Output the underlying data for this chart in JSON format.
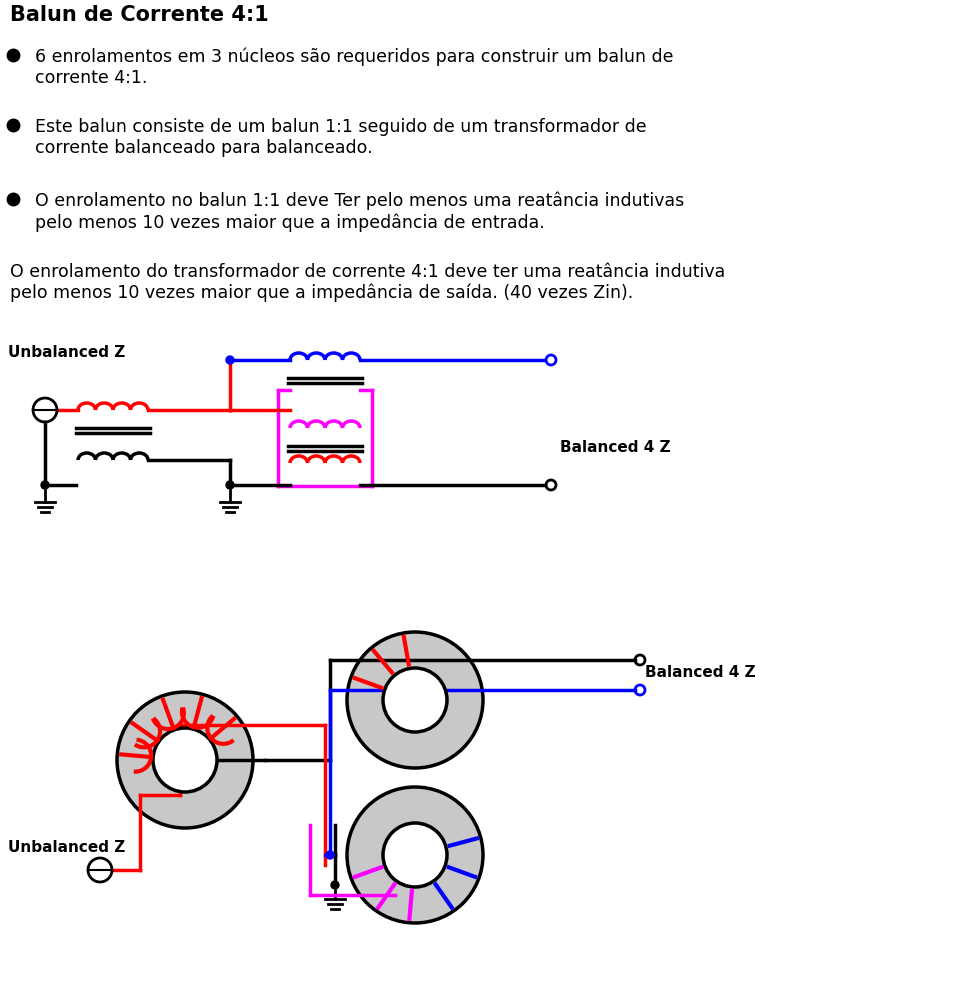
{
  "title": "Balun de Corrente 4:1",
  "bullet1": "6 enrolamentos em 3 núcleos são requeridos para construir um balun de\ncorrente 4:1.",
  "bullet2": "Este balun consiste de um balun 1:1 seguido de um transformador de\ncorrente balanceado para balanceado.",
  "bullet3": "O enrolamento no balun 1:1 deve Ter pelo menos uma reatância indutivas\npelo menos 10 vezes maior que a impedância de entrada.",
  "text4": "O enrolamento do transformador de corrente 4:1 deve ter uma reatância indutiva\npelo menos 10 vezes maior que a impedância de saída. (40 vezes Zin).",
  "label_unbalanced": "Unbalanced Z",
  "label_balanced": "Balanced 4 Z",
  "bg_color": "#ffffff",
  "text_color": "#000000",
  "red": "#ff0000",
  "blue": "#0000ff",
  "magenta": "#ff00ff",
  "black": "#000000"
}
